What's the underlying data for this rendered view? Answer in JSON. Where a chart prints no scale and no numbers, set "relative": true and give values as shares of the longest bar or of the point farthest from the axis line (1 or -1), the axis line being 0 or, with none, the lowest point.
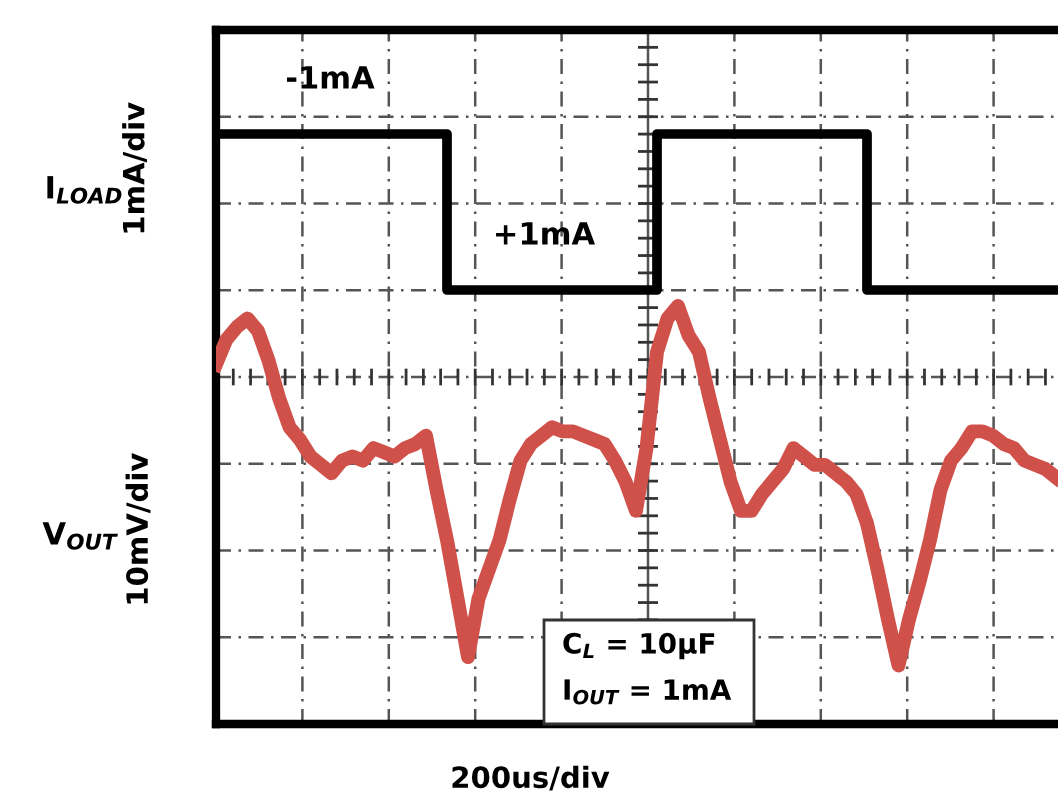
{
  "chart_data": [
    {
      "type": "step",
      "relative": true,
      "ylabel": "1mA/div",
      "grid": true,
      "annotations": [
        "I$_{LOAD}$",
        "-1mA",
        "+1mA"
      ],
      "categories": [
        null,
        null,
        null,
        null,
        null,
        null,
        null,
        null,
        null,
        null,
        null,
        null,
        null,
        null,
        null,
        null,
        null,
        null,
        null,
        null,
        null,
        null,
        null,
        null,
        null,
        null,
        null,
        null,
        null,
        null,
        null,
        null,
        null,
        null,
        null,
        null,
        null,
        null,
        null,
        null,
        null
      ],
      "series": [
        {
          "color": "#000000",
          "values": [
            1,
            1,
            1,
            1,
            1,
            1,
            1,
            1,
            1,
            1,
            1,
            0,
            0,
            0,
            0,
            0,
            0,
            0,
            0,
            0,
            0,
            1,
            1,
            1,
            1,
            1,
            1,
            1,
            1,
            1,
            1,
            0,
            0,
            0,
            0,
            0,
            0,
            0,
            0,
            0,
            0
          ]
        }
      ]
    },
    {
      "type": "line",
      "relative": true,
      "ylabel": "10mV/div",
      "xlabel": "200us/div",
      "annotations": [
        "V$_{OUT}$",
        "C$_{L}$ = 10µF",
        "I$_{OUT}$ = 1mA"
      ],
      "categories": [
        null,
        null,
        null,
        null,
        null,
        null,
        null,
        null,
        null,
        null,
        null,
        null,
        null,
        null,
        null,
        null,
        null,
        null,
        null,
        null,
        null,
        null,
        null,
        null,
        null,
        null,
        null,
        null,
        null,
        null,
        null,
        null,
        null,
        null,
        null,
        null,
        null,
        null,
        null,
        null,
        null,
        null,
        null,
        null,
        null,
        null,
        null,
        null,
        null,
        null,
        null,
        null,
        null,
        null,
        null,
        null,
        null,
        null,
        null,
        null,
        null,
        null,
        null,
        null,
        null,
        null,
        null,
        null,
        null,
        null,
        null,
        null,
        null,
        null,
        null,
        null,
        null,
        null,
        null,
        null,
        null
      ],
      "series": [
        {
          "color": "#d0504a",
          "values": [
            0.86,
            0.92,
            0.95,
            0.97,
            0.94,
            0.87,
            0.78,
            0.71,
            0.68,
            0.64,
            0.62,
            0.6,
            0.63,
            0.64,
            0.63,
            0.66,
            0.65,
            0.64,
            0.66,
            0.67,
            0.69,
            0.56,
            0.44,
            0.3,
            0.16,
            0.3,
            0.37,
            0.44,
            0.54,
            0.63,
            0.67,
            0.69,
            0.71,
            0.7,
            0.7,
            0.69,
            0.68,
            0.67,
            0.63,
            0.58,
            0.51,
            0.66,
            0.89,
            0.97,
            1,
            0.93,
            0.89,
            0.78,
            0.68,
            0.58,
            0.51,
            0.51,
            0.55,
            0.58,
            0.61,
            0.66,
            0.64,
            0.62,
            0.62,
            0.6,
            0.58,
            0.55,
            0.48,
            0.37,
            0.25,
            0.14,
            0.25,
            0.34,
            0.44,
            0.56,
            0.63,
            0.66,
            0.7,
            0.7,
            0.69,
            0.67,
            0.66,
            0.63,
            0.62,
            0.61,
            0.59
          ]
        }
      ]
    }
  ]
}
